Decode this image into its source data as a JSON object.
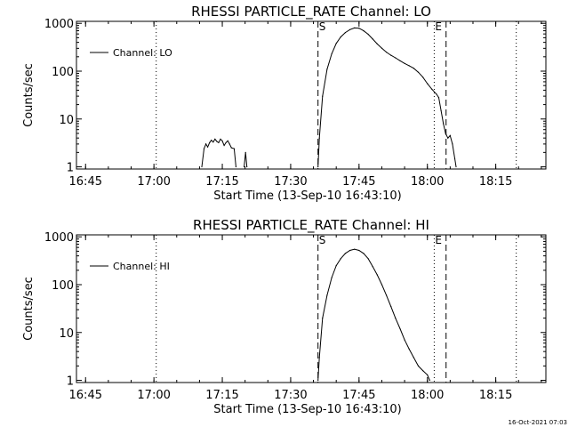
{
  "footer": {
    "timestamp": "16-Oct-2021 07:03"
  },
  "colors": {
    "foreground": "#000000",
    "background": "#ffffff"
  },
  "chart_data": [
    {
      "type": "line",
      "title": "RHESSI PARTICLE_RATE Channel: LO",
      "xlabel": "Start Time (13-Sep-10 16:43:10)",
      "ylabel": "Counts/sec",
      "y_scale": "log",
      "ylim": [
        0.9,
        1100
      ],
      "y_ticks": [
        1,
        10,
        100,
        1000
      ],
      "y_tick_labels": [
        "1",
        "10",
        "100",
        "1000"
      ],
      "xlim": [
        "16:43",
        "18:26"
      ],
      "x_ticks": [
        "16:45",
        "17:00",
        "17:15",
        "17:30",
        "17:45",
        "18:00",
        "18:15"
      ],
      "legend": {
        "label": "Channel: LO",
        "placement": "top-left"
      },
      "marker_labels": {
        "start": "S",
        "end": "E"
      },
      "dashed_lines_x": [
        "17:36.0",
        "18:04.1"
      ],
      "dotted_lines_x": [
        "17:00.5",
        "18:01.5",
        "18:19.5"
      ],
      "segments": [
        {
          "x": [
            "17:10.5",
            "17:11.0",
            "17:11.4",
            "17:11.8",
            "17:12.2",
            "17:12.6",
            "17:13.0",
            "17:13.4",
            "17:13.8",
            "17:14.2",
            "17:14.6",
            "17:15.0",
            "17:15.4",
            "17:15.8",
            "17:16.2",
            "17:16.6",
            "17:17.0",
            "17:17.6",
            "17:18.0"
          ],
          "y": [
            1,
            2.4,
            3,
            2.6,
            3.2,
            3.6,
            3.3,
            3.8,
            3.4,
            3.2,
            3.8,
            3.5,
            2.8,
            3.2,
            3.5,
            3.0,
            2.5,
            2.4,
            1
          ]
        },
        {
          "x": [
            "17:19.8",
            "17:20.1",
            "17:20.4"
          ],
          "y": [
            1,
            2.0,
            1
          ]
        },
        {
          "x": [
            "17:36.0",
            "17:36.3",
            "17:37.0",
            "17:38.0",
            "17:39.0",
            "17:40.0",
            "17:41.0",
            "17:42.0",
            "17:43.0",
            "17:44.0",
            "17:45.0",
            "17:46.0",
            "17:47.0",
            "17:48.0",
            "17:49.0",
            "17:50.0",
            "17:51.0",
            "17:52.0",
            "17:53.0",
            "17:54.0",
            "17:55.0",
            "17:56.0",
            "17:57.0",
            "17:58.0",
            "17:59.0",
            "18:00.0",
            "18:01.0",
            "18:02.0",
            "18:02.5",
            "18:03.0",
            "18:03.5",
            "18:04.0",
            "18:04.5",
            "18:05.0",
            "18:05.5",
            "18:06.0",
            "18:06.3"
          ],
          "y": [
            1,
            4,
            30,
            110,
            230,
            380,
            520,
            640,
            740,
            800,
            790,
            700,
            590,
            470,
            370,
            300,
            250,
            215,
            190,
            165,
            145,
            130,
            115,
            95,
            75,
            55,
            42,
            33,
            28,
            15,
            8,
            5,
            4,
            4.5,
            3,
            1.5,
            1
          ]
        }
      ]
    },
    {
      "type": "line",
      "title": "RHESSI PARTICLE_RATE Channel: HI",
      "xlabel": "Start Time (13-Sep-10 16:43:10)",
      "ylabel": "Counts/sec",
      "y_scale": "log",
      "ylim": [
        0.9,
        1100
      ],
      "y_ticks": [
        1,
        10,
        100,
        1000
      ],
      "y_tick_labels": [
        "1",
        "10",
        "100",
        "1000"
      ],
      "xlim": [
        "16:43",
        "18:26"
      ],
      "x_ticks": [
        "16:45",
        "17:00",
        "17:15",
        "17:30",
        "17:45",
        "18:00",
        "18:15"
      ],
      "legend": {
        "label": "Channel: HI",
        "placement": "top-left"
      },
      "marker_labels": {
        "start": "S",
        "end": "E"
      },
      "dashed_lines_x": [
        "17:36.0",
        "18:04.1"
      ],
      "dotted_lines_x": [
        "17:00.5",
        "18:01.5",
        "18:19.5"
      ],
      "segments": [
        {
          "x": [
            "17:36.0",
            "17:36.3",
            "17:37.0",
            "17:38.0",
            "17:39.0",
            "17:40.0",
            "17:41.0",
            "17:42.0",
            "17:43.0",
            "17:44.0",
            "17:45.0",
            "17:46.0",
            "17:47.0",
            "17:48.0",
            "17:49.0",
            "17:50.0",
            "17:51.0",
            "17:52.0",
            "17:53.0",
            "17:54.0",
            "17:55.0",
            "17:56.0",
            "17:57.0",
            "17:58.0",
            "17:59.0",
            "18:00.0",
            "18:00.5"
          ],
          "y": [
            1,
            3,
            20,
            60,
            140,
            250,
            350,
            450,
            520,
            550,
            520,
            450,
            350,
            240,
            160,
            100,
            60,
            35,
            20,
            12,
            7,
            4.5,
            3,
            2,
            1.6,
            1.3,
            1
          ]
        }
      ]
    }
  ]
}
